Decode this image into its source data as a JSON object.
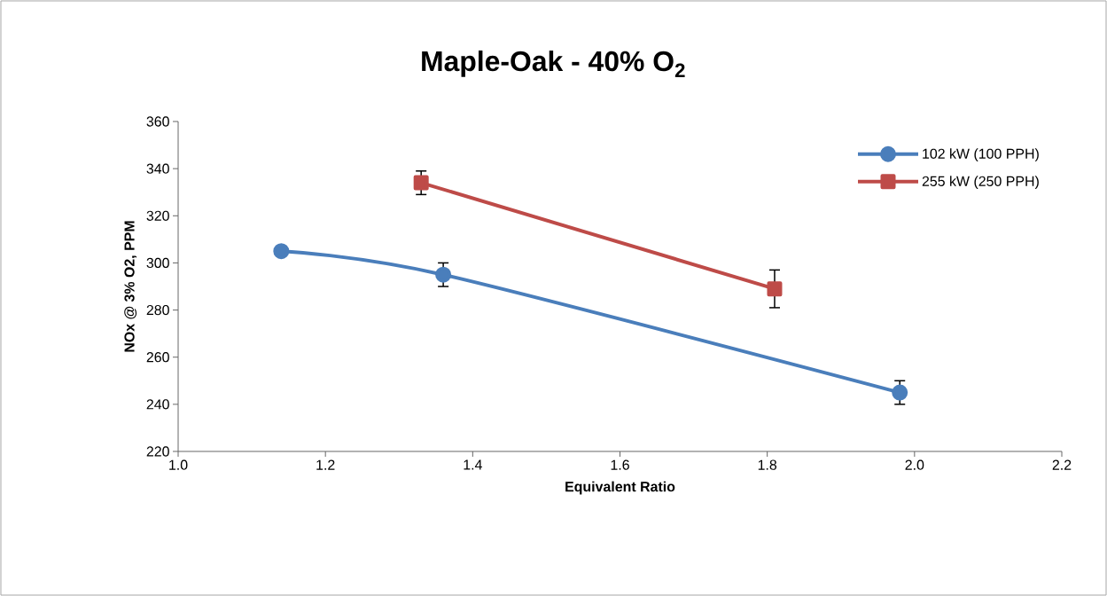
{
  "chart_data": {
    "type": "line",
    "title": "Maple-Oak - 40% O$_{2}$",
    "xlabel": "Equivalent Ratio",
    "ylabel": "NOx @ 3% O2, PPM",
    "xlim": [
      1.0,
      2.2
    ],
    "xticks": [
      {
        "value": 1.0,
        "label": "1.0"
      },
      {
        "value": 1.2,
        "label": "1.2"
      },
      {
        "value": 1.4,
        "label": "1.4"
      },
      {
        "value": 1.6,
        "label": "1.6"
      },
      {
        "value": 1.8,
        "label": "1.8"
      },
      {
        "value": 2.0,
        "label": "2.0"
      },
      {
        "value": 2.2,
        "label": "2.2"
      }
    ],
    "ylim": [
      220,
      360
    ],
    "yticks": [
      220,
      240,
      260,
      280,
      300,
      320,
      340,
      360
    ],
    "grid": false,
    "legend": "top right",
    "series": [
      {
        "name": "102 kW (100 PPH)",
        "color": "#4a7ebb",
        "marker": "circle",
        "x": [
          1.14,
          1.36,
          1.98
        ],
        "values": [
          305,
          295,
          245
        ],
        "errors": [
          null,
          5,
          5
        ]
      },
      {
        "name": "255 kW (250 PPH)",
        "color": "#be4b48",
        "marker": "square",
        "x": [
          1.33,
          1.81
        ],
        "values": [
          334,
          289
        ],
        "errors": [
          5,
          8
        ]
      }
    ]
  }
}
